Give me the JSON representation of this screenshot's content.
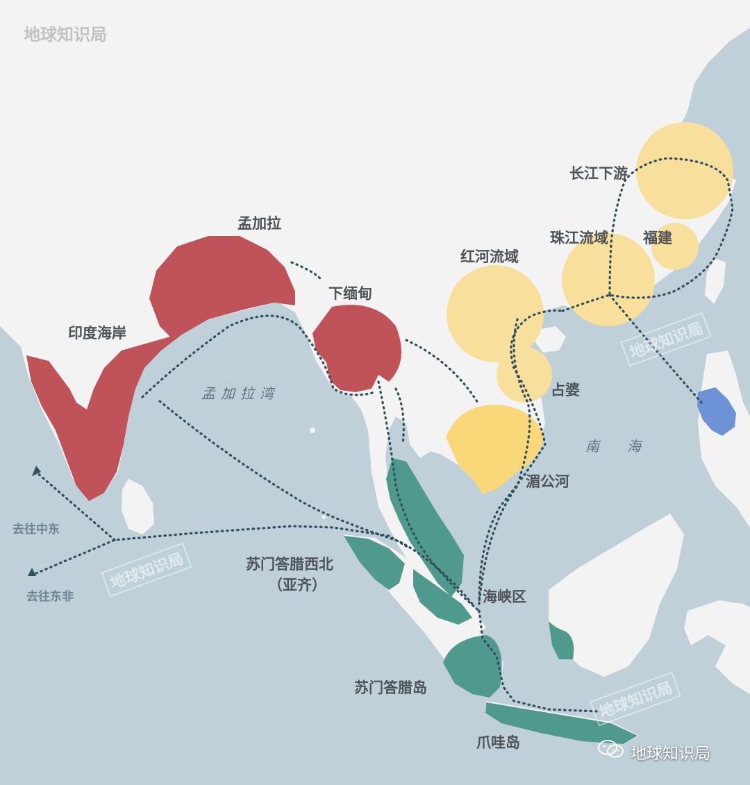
{
  "brand": {
    "title": "地球知识局"
  },
  "legend_colors": {
    "india_bengal_burma": "#c0525a",
    "china_indochina": "#f8df9c",
    "malay_java": "#4f9a8d",
    "philippines": "#6d92d6",
    "land": "#f3f3f3",
    "sea": "#bfd0d9",
    "route": "#2f4f5f"
  },
  "regions": {
    "india_coast": "印度海岸",
    "bengal": "孟加拉",
    "lower_burma": "下缅甸",
    "red_river": "红河流域",
    "pearl_river": "珠江流域",
    "fujian": "福建",
    "yangtze_lower": "长江下游",
    "champa": "占婆",
    "mekong": "湄公河",
    "north_sumatra_line1": "苏门答腊西北",
    "north_sumatra_line2": "（亚齐）",
    "strait_zone": "海峡区",
    "sumatra": "苏门答腊岛",
    "java": "爪哇岛"
  },
  "seas": {
    "bay_of_bengal": "孟加拉湾",
    "south_china_sea": "南海"
  },
  "routes": {
    "to_middle_east": "去往中东",
    "to_east_africa": "去往东非"
  },
  "watermarks": [
    "地球知识局",
    "地球知识局",
    "地球知识局"
  ],
  "footer": {
    "account": "地球知识局",
    "icon": "wechat-icon"
  }
}
